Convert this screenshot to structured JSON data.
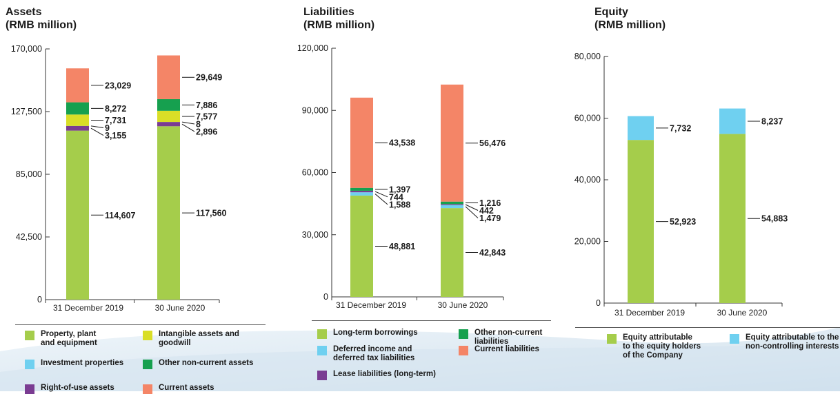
{
  "colors": {
    "green": "#a5cd4b",
    "yellow": "#d9de27",
    "blue": "#6fd0f0",
    "dkgreen": "#16a04f",
    "purple": "#7a3c92",
    "orange": "#f48567",
    "axis": "#333333"
  },
  "chart_data": [
    {
      "type": "bar",
      "stacked": true,
      "title": "Assets\n(RMB million)",
      "categories": [
        "31 December 2019",
        "30 June 2020"
      ],
      "ylim": [
        0,
        170000
      ],
      "yticks": [
        0,
        42500,
        85000,
        127500,
        170000
      ],
      "ytick_labels": [
        "0",
        "42,500",
        "85,000",
        "127,500",
        "170,000"
      ],
      "series": [
        {
          "name": "Property, plant\nand equipment",
          "color": "green",
          "values": [
            114607,
            117560
          ],
          "labels": [
            "114,607",
            "117,560"
          ]
        },
        {
          "name": "Right-of-use assets",
          "color": "purple",
          "values": [
            3155,
            2896
          ],
          "labels": [
            "3,155",
            "2,896"
          ]
        },
        {
          "name": "Investment properties",
          "color": "blue",
          "values": [
            9,
            8
          ],
          "labels": [
            "9",
            "8"
          ]
        },
        {
          "name": "Intangible assets and\ngoodwill",
          "color": "yellow",
          "values": [
            7731,
            7577
          ],
          "labels": [
            "7,731",
            "7,577"
          ]
        },
        {
          "name": "Other non-current assets",
          "color": "dkgreen",
          "values": [
            8272,
            7886
          ],
          "labels": [
            "8,272",
            "7,886"
          ]
        },
        {
          "name": "Current assets",
          "color": "orange",
          "values": [
            23029,
            29649
          ],
          "labels": [
            "23,029",
            "29,649"
          ]
        }
      ],
      "legend_order": [
        0,
        3,
        2,
        4,
        1,
        5
      ]
    },
    {
      "type": "bar",
      "stacked": true,
      "title": "Liabilities\n(RMB million)",
      "categories": [
        "31 December 2019",
        "30 June 2020"
      ],
      "ylim": [
        0,
        120000
      ],
      "yticks": [
        0,
        30000,
        60000,
        90000,
        120000
      ],
      "ytick_labels": [
        "0",
        "30,000",
        "60,000",
        "90,000",
        "120,000"
      ],
      "series": [
        {
          "name": "Long-term borrowings",
          "color": "green",
          "values": [
            48881,
            42843
          ],
          "labels": [
            "48,881",
            "42,843"
          ]
        },
        {
          "name": "Deferred income and\ndeferred tax liabilities",
          "color": "blue",
          "values": [
            1588,
            1479
          ],
          "labels": [
            "1,588",
            "1,479"
          ]
        },
        {
          "name": "Lease liabilities (long-term)",
          "color": "purple",
          "values": [
            744,
            442
          ],
          "labels": [
            "744",
            "442"
          ]
        },
        {
          "name": "Other non-current\nliabilities",
          "color": "dkgreen",
          "values": [
            1397,
            1216
          ],
          "labels": [
            "1,397",
            "1,216"
          ]
        },
        {
          "name": "Current liabilities",
          "color": "orange",
          "values": [
            43538,
            56476
          ],
          "labels": [
            "43,538",
            "56,476"
          ]
        }
      ],
      "legend_order": [
        0,
        3,
        1,
        4,
        2
      ]
    },
    {
      "type": "bar",
      "stacked": true,
      "title": "Equity\n(RMB million)",
      "categories": [
        "31 December 2019",
        "30 June 2020"
      ],
      "ylim": [
        0,
        80000
      ],
      "yticks": [
        0,
        20000,
        40000,
        60000,
        80000
      ],
      "ytick_labels": [
        "0",
        "20,000",
        "40,000",
        "60,000",
        "80,000"
      ],
      "series": [
        {
          "name": "Equity attributable\nto the equity holders\nof the Company",
          "color": "green",
          "values": [
            52923,
            54883
          ],
          "labels": [
            "52,923",
            "54,883"
          ]
        },
        {
          "name": "Equity attributable to the\nnon-controlling interests",
          "color": "blue",
          "values": [
            7732,
            8237
          ],
          "labels": [
            "7,732",
            "8,237"
          ]
        }
      ],
      "legend_order": [
        0,
        1
      ]
    }
  ]
}
